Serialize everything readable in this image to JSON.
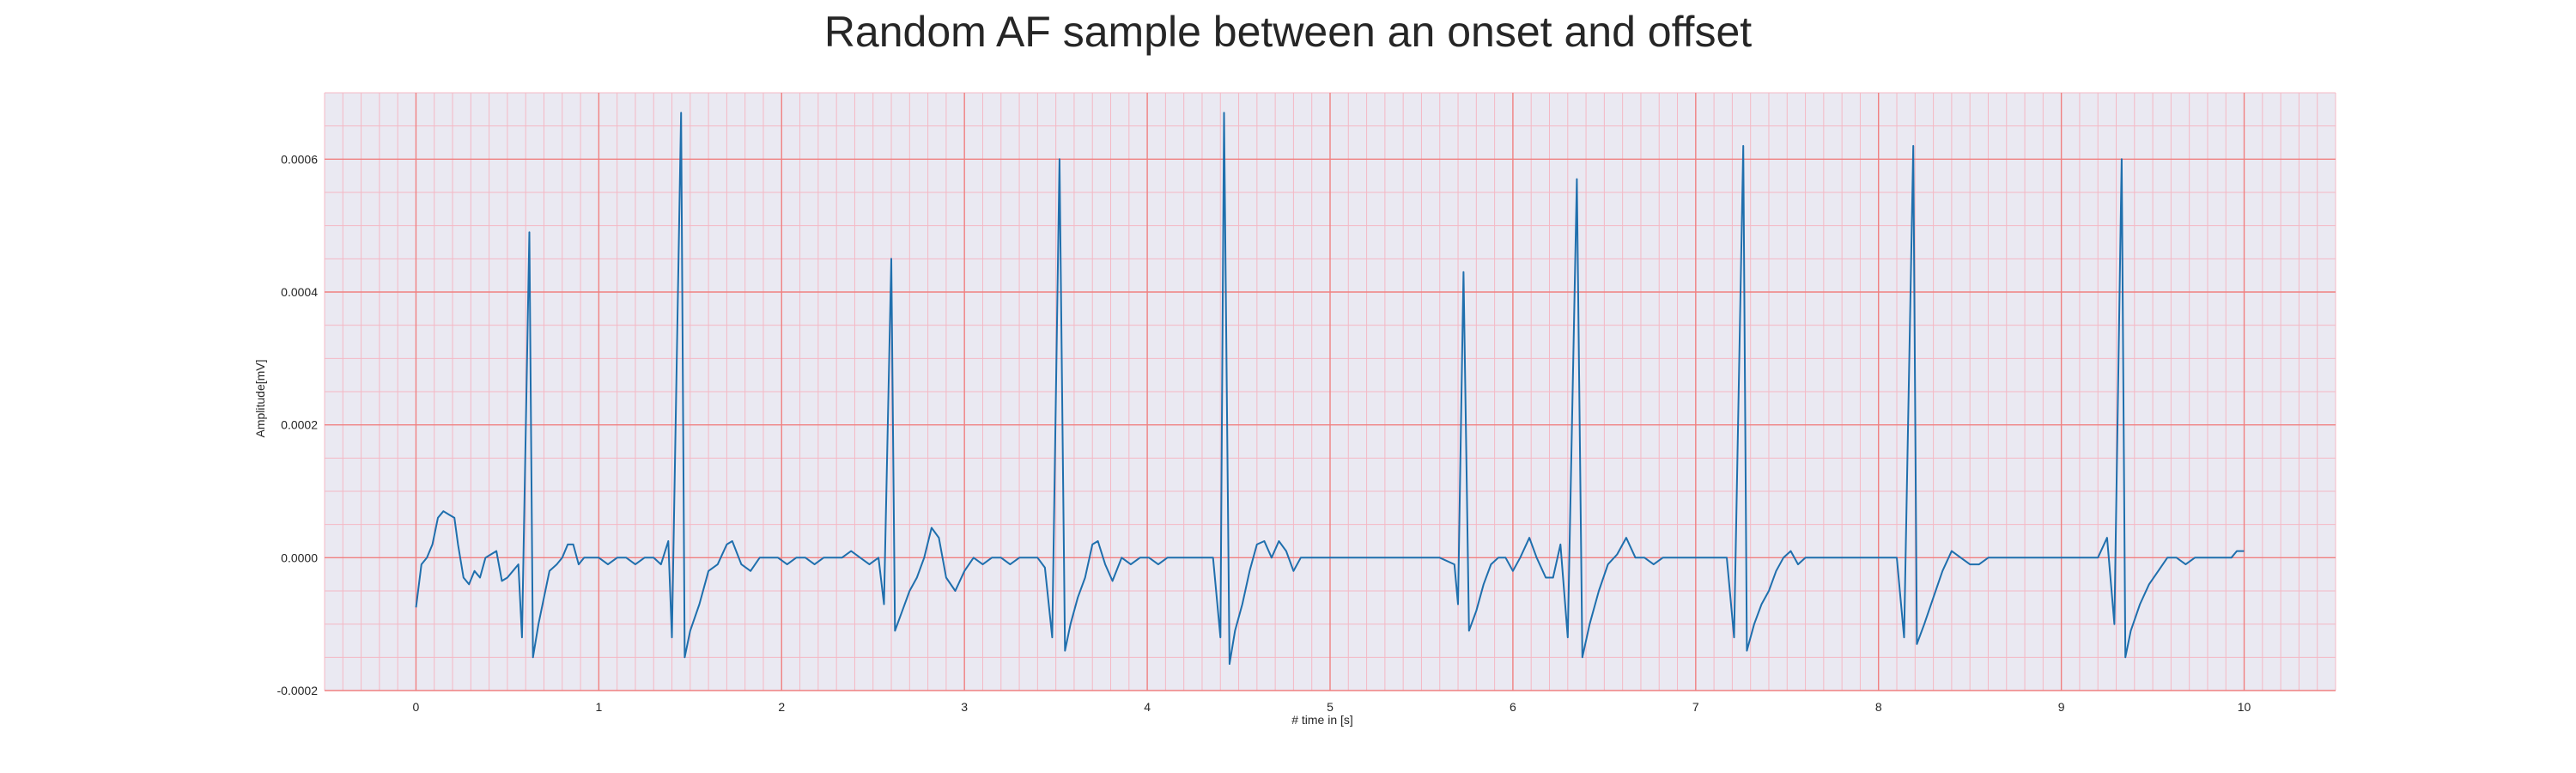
{
  "chart_data": {
    "type": "line",
    "title": "Random AF sample between an onset and offset",
    "xlabel": "# time in [s]",
    "ylabel": "Amplitude[mV]",
    "xlim": [
      -0.5,
      10.5
    ],
    "ylim": [
      -0.0002,
      0.0007
    ],
    "xticks": [
      0,
      1,
      2,
      3,
      4,
      5,
      6,
      7,
      8,
      9,
      10
    ],
    "xtick_labels": [
      "0",
      "1",
      "2",
      "3",
      "4",
      "5",
      "6",
      "7",
      "8",
      "9",
      "10"
    ],
    "yticks": [
      -0.0002,
      0.0,
      0.0002,
      0.0004,
      0.0006
    ],
    "ytick_labels": [
      "-0.0002",
      "0.0000",
      "0.0002",
      "0.0004",
      "0.0006"
    ],
    "grid": true,
    "minor_grid": true,
    "legend": "none",
    "colors": {
      "line": "#1f6fad",
      "plot_background": "#eae9f2",
      "major_grid": "#f08080",
      "minor_grid": "#f4b8c4"
    },
    "series": [
      {
        "points": [
          [
            0.0,
            -7.5e-05
          ],
          [
            0.03,
            -1e-05
          ],
          [
            0.06,
            0.0
          ],
          [
            0.09,
            2e-05
          ],
          [
            0.12,
            6e-05
          ],
          [
            0.15,
            7e-05
          ],
          [
            0.18,
            6.5e-05
          ],
          [
            0.21,
            6e-05
          ],
          [
            0.23,
            2e-05
          ],
          [
            0.26,
            -3e-05
          ],
          [
            0.29,
            -4e-05
          ],
          [
            0.32,
            -2e-05
          ],
          [
            0.35,
            -3e-05
          ],
          [
            0.38,
            0.0
          ],
          [
            0.41,
            5e-06
          ],
          [
            0.44,
            1e-05
          ],
          [
            0.47,
            -3.5e-05
          ],
          [
            0.5,
            -3e-05
          ],
          [
            0.53,
            -2e-05
          ],
          [
            0.56,
            -1e-05
          ],
          [
            0.58,
            -0.00012
          ],
          [
            0.62,
            0.00049
          ],
          [
            0.64,
            -0.00015
          ],
          [
            0.67,
            -0.0001
          ],
          [
            0.7,
            -6e-05
          ],
          [
            0.73,
            -2e-05
          ],
          [
            0.77,
            -1e-05
          ],
          [
            0.8,
            0.0
          ],
          [
            0.83,
            2e-05
          ],
          [
            0.86,
            2e-05
          ],
          [
            0.89,
            -1e-05
          ],
          [
            0.92,
            0.0
          ],
          [
            0.95,
            0.0
          ],
          [
            0.98,
            0.0
          ],
          [
            1.0,
            0.0
          ],
          [
            1.05,
            -1e-05
          ],
          [
            1.1,
            0.0
          ],
          [
            1.15,
            0.0
          ],
          [
            1.2,
            -1e-05
          ],
          [
            1.25,
            0.0
          ],
          [
            1.3,
            0.0
          ],
          [
            1.34,
            -1e-05
          ],
          [
            1.38,
            2.5e-05
          ],
          [
            1.4,
            -0.00012
          ],
          [
            1.45,
            0.00067
          ],
          [
            1.47,
            -0.00015
          ],
          [
            1.5,
            -0.00011
          ],
          [
            1.55,
            -7e-05
          ],
          [
            1.6,
            -2e-05
          ],
          [
            1.65,
            -1e-05
          ],
          [
            1.7,
            2e-05
          ],
          [
            1.73,
            2.5e-05
          ],
          [
            1.78,
            -1e-05
          ],
          [
            1.83,
            -2e-05
          ],
          [
            1.88,
            0.0
          ],
          [
            1.93,
            0.0
          ],
          [
            1.98,
            0.0
          ],
          [
            2.03,
            -1e-05
          ],
          [
            2.08,
            0.0
          ],
          [
            2.13,
            0.0
          ],
          [
            2.18,
            -1e-05
          ],
          [
            2.23,
            0.0
          ],
          [
            2.28,
            0.0
          ],
          [
            2.33,
            0.0
          ],
          [
            2.38,
            1e-05
          ],
          [
            2.43,
            0.0
          ],
          [
            2.48,
            -1e-05
          ],
          [
            2.53,
            0.0
          ],
          [
            2.56,
            -7e-05
          ],
          [
            2.6,
            0.00045
          ],
          [
            2.62,
            -0.00011
          ],
          [
            2.66,
            -8e-05
          ],
          [
            2.7,
            -5e-05
          ],
          [
            2.74,
            -3e-05
          ],
          [
            2.78,
            0.0
          ],
          [
            2.82,
            4.5e-05
          ],
          [
            2.86,
            3e-05
          ],
          [
            2.9,
            -3e-05
          ],
          [
            2.95,
            -5e-05
          ],
          [
            3.0,
            -2e-05
          ],
          [
            3.05,
            0.0
          ],
          [
            3.1,
            -1e-05
          ],
          [
            3.15,
            0.0
          ],
          [
            3.2,
            0.0
          ],
          [
            3.25,
            -1e-05
          ],
          [
            3.3,
            0.0
          ],
          [
            3.35,
            0.0
          ],
          [
            3.4,
            0.0
          ],
          [
            3.44,
            -1.5e-05
          ],
          [
            3.48,
            -0.00012
          ],
          [
            3.52,
            0.0006
          ],
          [
            3.55,
            -0.00014
          ],
          [
            3.58,
            -0.0001
          ],
          [
            3.62,
            -6e-05
          ],
          [
            3.66,
            -3e-05
          ],
          [
            3.7,
            2e-05
          ],
          [
            3.73,
            2.5e-05
          ],
          [
            3.77,
            -1e-05
          ],
          [
            3.81,
            -3.5e-05
          ],
          [
            3.86,
            0.0
          ],
          [
            3.91,
            -1e-05
          ],
          [
            3.96,
            0.0
          ],
          [
            4.01,
            0.0
          ],
          [
            4.06,
            -1e-05
          ],
          [
            4.11,
            0.0
          ],
          [
            4.16,
            0.0
          ],
          [
            4.21,
            0.0
          ],
          [
            4.26,
            0.0
          ],
          [
            4.31,
            0.0
          ],
          [
            4.36,
            0.0
          ],
          [
            4.4,
            -0.00012
          ],
          [
            4.42,
            0.00067
          ],
          [
            4.45,
            -0.00016
          ],
          [
            4.48,
            -0.00011
          ],
          [
            4.52,
            -7e-05
          ],
          [
            4.56,
            -2e-05
          ],
          [
            4.6,
            2e-05
          ],
          [
            4.64,
            2.5e-05
          ],
          [
            4.68,
            0.0
          ],
          [
            4.72,
            2.5e-05
          ],
          [
            4.76,
            1e-05
          ],
          [
            4.8,
            -2e-05
          ],
          [
            4.84,
            0.0
          ],
          [
            4.9,
            0.0
          ],
          [
            5.0,
            0.0
          ],
          [
            5.1,
            0.0
          ],
          [
            5.2,
            0.0
          ],
          [
            5.3,
            0.0
          ],
          [
            5.4,
            0.0
          ],
          [
            5.5,
            0.0
          ],
          [
            5.6,
            0.0
          ],
          [
            5.68,
            -1e-05
          ],
          [
            5.7,
            -7e-05
          ],
          [
            5.73,
            0.00043
          ],
          [
            5.76,
            -0.00011
          ],
          [
            5.8,
            -8e-05
          ],
          [
            5.84,
            -4e-05
          ],
          [
            5.88,
            -1e-05
          ],
          [
            5.92,
            0.0
          ],
          [
            5.96,
            0.0
          ],
          [
            6.0,
            -2e-05
          ],
          [
            6.04,
            0.0
          ],
          [
            6.09,
            3e-05
          ],
          [
            6.13,
            0.0
          ],
          [
            6.18,
            -3e-05
          ],
          [
            6.22,
            -3e-05
          ],
          [
            6.26,
            2e-05
          ],
          [
            6.3,
            -0.00012
          ],
          [
            6.35,
            0.00057
          ],
          [
            6.38,
            -0.00015
          ],
          [
            6.42,
            -0.0001
          ],
          [
            6.47,
            -5e-05
          ],
          [
            6.52,
            -1e-05
          ],
          [
            6.57,
            5e-06
          ],
          [
            6.62,
            3e-05
          ],
          [
            6.67,
            0.0
          ],
          [
            6.72,
            0.0
          ],
          [
            6.77,
            -1e-05
          ],
          [
            6.82,
            0.0
          ],
          [
            6.87,
            0.0
          ],
          [
            6.92,
            0.0
          ],
          [
            6.97,
            0.0
          ],
          [
            7.02,
            0.0
          ],
          [
            7.07,
            0.0
          ],
          [
            7.12,
            0.0
          ],
          [
            7.17,
            0.0
          ],
          [
            7.21,
            -0.00012
          ],
          [
            7.26,
            0.00062
          ],
          [
            7.28,
            -0.00014
          ],
          [
            7.32,
            -0.0001
          ],
          [
            7.36,
            -7e-05
          ],
          [
            7.4,
            -5e-05
          ],
          [
            7.44,
            -2e-05
          ],
          [
            7.48,
            0.0
          ],
          [
            7.52,
            1e-05
          ],
          [
            7.56,
            -1e-05
          ],
          [
            7.6,
            0.0
          ],
          [
            7.65,
            0.0
          ],
          [
            7.7,
            0.0
          ],
          [
            7.75,
            0.0
          ],
          [
            7.8,
            0.0
          ],
          [
            7.85,
            0.0
          ],
          [
            7.9,
            0.0
          ],
          [
            7.95,
            0.0
          ],
          [
            8.0,
            0.0
          ],
          [
            8.05,
            0.0
          ],
          [
            8.1,
            0.0
          ],
          [
            8.14,
            -0.00012
          ],
          [
            8.19,
            0.00062
          ],
          [
            8.21,
            -0.00013
          ],
          [
            8.25,
            -0.0001
          ],
          [
            8.3,
            -6e-05
          ],
          [
            8.35,
            -2e-05
          ],
          [
            8.4,
            1e-05
          ],
          [
            8.45,
            0.0
          ],
          [
            8.5,
            -1e-05
          ],
          [
            8.55,
            -1e-05
          ],
          [
            8.6,
            0.0
          ],
          [
            8.65,
            0.0
          ],
          [
            8.7,
            0.0
          ],
          [
            8.75,
            0.0
          ],
          [
            8.8,
            0.0
          ],
          [
            8.85,
            0.0
          ],
          [
            8.9,
            0.0
          ],
          [
            8.95,
            0.0
          ],
          [
            9.0,
            0.0
          ],
          [
            9.05,
            0.0
          ],
          [
            9.1,
            0.0
          ],
          [
            9.15,
            0.0
          ],
          [
            9.2,
            0.0
          ],
          [
            9.25,
            3e-05
          ],
          [
            9.29,
            -0.0001
          ],
          [
            9.33,
            0.0006
          ],
          [
            9.35,
            -0.00015
          ],
          [
            9.38,
            -0.00011
          ],
          [
            9.43,
            -7e-05
          ],
          [
            9.48,
            -4e-05
          ],
          [
            9.53,
            -2e-05
          ],
          [
            9.58,
            0.0
          ],
          [
            9.63,
            0.0
          ],
          [
            9.68,
            -1e-05
          ],
          [
            9.73,
            0.0
          ],
          [
            9.78,
            0.0
          ],
          [
            9.83,
            0.0
          ],
          [
            9.88,
            0.0
          ],
          [
            9.93,
            0.0
          ],
          [
            9.96,
            1e-05
          ],
          [
            10.0,
            1e-05
          ]
        ]
      }
    ]
  }
}
